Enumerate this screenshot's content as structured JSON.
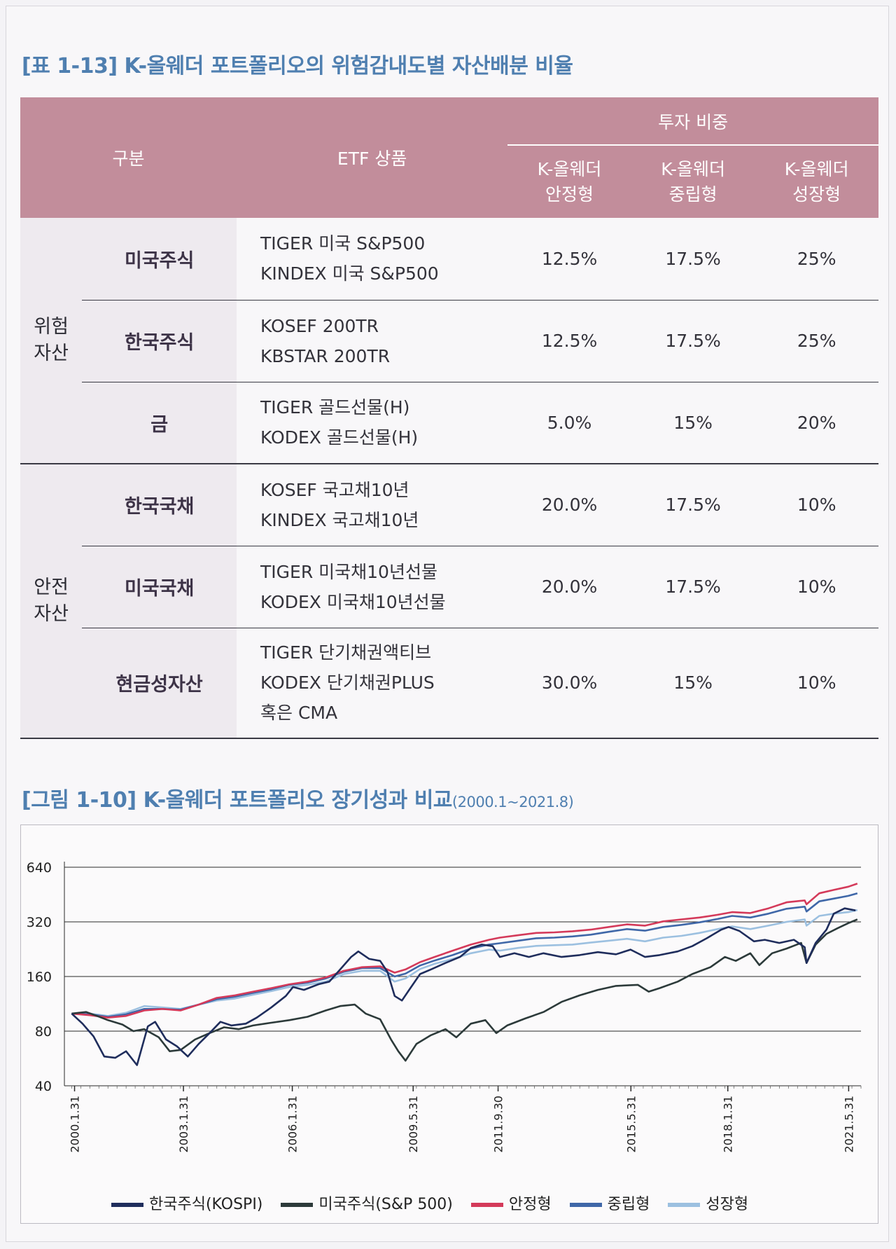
{
  "table": {
    "caption": "[표 1-13] K-올웨더 포트폴리오의 위험감내도별 자산배분 비율",
    "header": {
      "category": "구분",
      "etf": "ETF 상품",
      "weight_group": "투자 비중",
      "stable": [
        "K-올웨더",
        "안정형"
      ],
      "neutral": [
        "K-올웨더",
        "중립형"
      ],
      "growth": [
        "K-올웨더",
        "성장형"
      ]
    },
    "groups": [
      {
        "name": [
          "위험",
          "자산"
        ],
        "rows": [
          {
            "sub": "미국주식",
            "etf": [
              "TIGER 미국 S&P500",
              "KINDEX 미국 S&P500"
            ],
            "stable": "12.5%",
            "neutral": "17.5%",
            "growth": "25%"
          },
          {
            "sub": "한국주식",
            "etf": [
              "KOSEF 200TR",
              "KBSTAR 200TR"
            ],
            "stable": "12.5%",
            "neutral": "17.5%",
            "growth": "25%"
          },
          {
            "sub": "금",
            "etf": [
              "TIGER 골드선물(H)",
              "KODEX 골드선물(H)"
            ],
            "stable": "5.0%",
            "neutral": "15%",
            "growth": "20%"
          }
        ]
      },
      {
        "name": [
          "안전",
          "자산"
        ],
        "rows": [
          {
            "sub": "한국국채",
            "etf": [
              "KOSEF 국고채10년",
              "KINDEX 국고채10년"
            ],
            "stable": "20.0%",
            "neutral": "17.5%",
            "growth": "10%"
          },
          {
            "sub": "미국국채",
            "etf": [
              "TIGER 미국채10년선물",
              "KODEX 미국채10년선물"
            ],
            "stable": "20.0%",
            "neutral": "17.5%",
            "growth": "10%"
          },
          {
            "sub": "현금성자산",
            "etf": [
              "TIGER 단기채권액티브",
              "KODEX 단기채권PLUS",
              "혹은 CMA"
            ],
            "stable": "30.0%",
            "neutral": "15%",
            "growth": "10%"
          }
        ]
      }
    ]
  },
  "figure": {
    "caption_main": "[그림 1-10] K-올웨더 포트폴리오 장기성과 비교",
    "caption_range": "(2000.1~2021.8)"
  },
  "chart_data": {
    "type": "line",
    "y_scale": "log2",
    "ylim": [
      40,
      640
    ],
    "y_ticks": [
      40,
      80,
      160,
      320,
      640
    ],
    "x_ticks": [
      "2000.1.31",
      "2003.1.31",
      "2006.1.31",
      "2009.5.31",
      "2011.9.30",
      "2015.5.31",
      "2018.1.31",
      "2021.5.31"
    ],
    "x_tick_years": [
      2000.08,
      2003.08,
      2006.08,
      2009.41,
      2011.75,
      2015.41,
      2018.08,
      2021.41
    ],
    "xlim_years": [
      1999.8,
      2021.75
    ],
    "grid": "horizontal",
    "legend_position": "bottom",
    "series": [
      {
        "name": "한국주식(KOSPI)",
        "color": "#1f2d5c",
        "points": [
          [
            2000.0,
            100
          ],
          [
            2000.3,
            88
          ],
          [
            2000.6,
            75
          ],
          [
            2000.9,
            58
          ],
          [
            2001.2,
            57
          ],
          [
            2001.5,
            62
          ],
          [
            2001.8,
            52
          ],
          [
            2002.1,
            85
          ],
          [
            2002.3,
            90
          ],
          [
            2002.6,
            72
          ],
          [
            2002.9,
            66
          ],
          [
            2003.2,
            58
          ],
          [
            2003.5,
            68
          ],
          [
            2003.8,
            78
          ],
          [
            2004.1,
            90
          ],
          [
            2004.4,
            86
          ],
          [
            2004.8,
            88
          ],
          [
            2005.1,
            95
          ],
          [
            2005.5,
            108
          ],
          [
            2005.9,
            125
          ],
          [
            2006.1,
            140
          ],
          [
            2006.4,
            135
          ],
          [
            2006.8,
            145
          ],
          [
            2007.1,
            150
          ],
          [
            2007.4,
            175
          ],
          [
            2007.7,
            205
          ],
          [
            2007.9,
            220
          ],
          [
            2008.2,
            200
          ],
          [
            2008.5,
            195
          ],
          [
            2008.7,
            170
          ],
          [
            2008.9,
            125
          ],
          [
            2009.1,
            118
          ],
          [
            2009.3,
            135
          ],
          [
            2009.6,
            165
          ],
          [
            2009.9,
            175
          ],
          [
            2010.3,
            190
          ],
          [
            2010.7,
            205
          ],
          [
            2011.0,
            230
          ],
          [
            2011.3,
            240
          ],
          [
            2011.6,
            235
          ],
          [
            2011.8,
            205
          ],
          [
            2012.2,
            215
          ],
          [
            2012.6,
            205
          ],
          [
            2013.0,
            215
          ],
          [
            2013.5,
            205
          ],
          [
            2014.0,
            210
          ],
          [
            2014.5,
            218
          ],
          [
            2015.0,
            212
          ],
          [
            2015.4,
            225
          ],
          [
            2015.8,
            205
          ],
          [
            2016.2,
            210
          ],
          [
            2016.7,
            220
          ],
          [
            2017.1,
            235
          ],
          [
            2017.5,
            260
          ],
          [
            2017.9,
            290
          ],
          [
            2018.1,
            300
          ],
          [
            2018.4,
            285
          ],
          [
            2018.8,
            250
          ],
          [
            2019.1,
            255
          ],
          [
            2019.5,
            245
          ],
          [
            2019.9,
            255
          ],
          [
            2020.2,
            232
          ],
          [
            2020.25,
            190
          ],
          [
            2020.5,
            245
          ],
          [
            2020.8,
            290
          ],
          [
            2021.0,
            355
          ],
          [
            2021.3,
            380
          ],
          [
            2021.6,
            370
          ]
        ]
      },
      {
        "name": "미국주식(S&P 500)",
        "color": "#2c3a3a",
        "points": [
          [
            2000.0,
            100
          ],
          [
            2000.4,
            102
          ],
          [
            2000.7,
            97
          ],
          [
            2001.0,
            92
          ],
          [
            2001.4,
            87
          ],
          [
            2001.7,
            80
          ],
          [
            2002.0,
            82
          ],
          [
            2002.4,
            74
          ],
          [
            2002.7,
            62
          ],
          [
            2003.0,
            63
          ],
          [
            2003.4,
            72
          ],
          [
            2003.8,
            78
          ],
          [
            2004.2,
            84
          ],
          [
            2004.6,
            82
          ],
          [
            2005.0,
            86
          ],
          [
            2005.5,
            89
          ],
          [
            2006.0,
            92
          ],
          [
            2006.5,
            96
          ],
          [
            2007.0,
            104
          ],
          [
            2007.4,
            110
          ],
          [
            2007.8,
            112
          ],
          [
            2008.1,
            100
          ],
          [
            2008.5,
            93
          ],
          [
            2008.8,
            72
          ],
          [
            2009.0,
            62
          ],
          [
            2009.2,
            55
          ],
          [
            2009.5,
            68
          ],
          [
            2009.9,
            76
          ],
          [
            2010.3,
            82
          ],
          [
            2010.6,
            74
          ],
          [
            2011.0,
            88
          ],
          [
            2011.4,
            92
          ],
          [
            2011.7,
            78
          ],
          [
            2012.0,
            86
          ],
          [
            2012.5,
            94
          ],
          [
            2013.0,
            102
          ],
          [
            2013.5,
            116
          ],
          [
            2014.0,
            126
          ],
          [
            2014.5,
            135
          ],
          [
            2015.0,
            142
          ],
          [
            2015.6,
            144
          ],
          [
            2015.9,
            132
          ],
          [
            2016.2,
            138
          ],
          [
            2016.7,
            150
          ],
          [
            2017.1,
            165
          ],
          [
            2017.6,
            180
          ],
          [
            2018.0,
            205
          ],
          [
            2018.3,
            195
          ],
          [
            2018.7,
            215
          ],
          [
            2018.95,
            185
          ],
          [
            2019.3,
            215
          ],
          [
            2019.7,
            228
          ],
          [
            2020.1,
            245
          ],
          [
            2020.25,
            190
          ],
          [
            2020.5,
            240
          ],
          [
            2020.8,
            275
          ],
          [
            2021.1,
            295
          ],
          [
            2021.4,
            315
          ],
          [
            2021.65,
            330
          ]
        ]
      },
      {
        "name": "안정형",
        "color": "#d43a5a",
        "points": [
          [
            2000.0,
            100
          ],
          [
            2000.5,
            98
          ],
          [
            2001.0,
            95
          ],
          [
            2001.5,
            97
          ],
          [
            2002.0,
            104
          ],
          [
            2002.5,
            106
          ],
          [
            2003.0,
            104
          ],
          [
            2003.5,
            112
          ],
          [
            2004.0,
            122
          ],
          [
            2004.5,
            126
          ],
          [
            2005.0,
            132
          ],
          [
            2005.5,
            138
          ],
          [
            2006.0,
            145
          ],
          [
            2006.5,
            150
          ],
          [
            2007.0,
            158
          ],
          [
            2007.5,
            172
          ],
          [
            2008.0,
            180
          ],
          [
            2008.5,
            182
          ],
          [
            2008.9,
            168
          ],
          [
            2009.2,
            175
          ],
          [
            2009.6,
            192
          ],
          [
            2010.0,
            205
          ],
          [
            2010.5,
            222
          ],
          [
            2011.0,
            240
          ],
          [
            2011.5,
            255
          ],
          [
            2011.8,
            262
          ],
          [
            2012.3,
            270
          ],
          [
            2012.8,
            278
          ],
          [
            2013.3,
            280
          ],
          [
            2013.8,
            284
          ],
          [
            2014.3,
            290
          ],
          [
            2014.8,
            300
          ],
          [
            2015.3,
            310
          ],
          [
            2015.8,
            305
          ],
          [
            2016.3,
            322
          ],
          [
            2016.8,
            330
          ],
          [
            2017.3,
            338
          ],
          [
            2017.8,
            350
          ],
          [
            2018.2,
            362
          ],
          [
            2018.7,
            358
          ],
          [
            2019.2,
            380
          ],
          [
            2019.7,
            410
          ],
          [
            2020.2,
            420
          ],
          [
            2020.25,
            400
          ],
          [
            2020.6,
            460
          ],
          [
            2021.0,
            480
          ],
          [
            2021.4,
            500
          ],
          [
            2021.65,
            520
          ]
        ]
      },
      {
        "name": "중립형",
        "color": "#3f67a8",
        "points": [
          [
            2000.0,
            100
          ],
          [
            2000.5,
            99
          ],
          [
            2001.0,
            96
          ],
          [
            2001.5,
            99
          ],
          [
            2002.0,
            106
          ],
          [
            2002.5,
            106
          ],
          [
            2003.0,
            105
          ],
          [
            2003.5,
            112
          ],
          [
            2004.0,
            120
          ],
          [
            2004.5,
            124
          ],
          [
            2005.0,
            130
          ],
          [
            2005.5,
            136
          ],
          [
            2006.0,
            144
          ],
          [
            2006.5,
            148
          ],
          [
            2007.0,
            156
          ],
          [
            2007.5,
            170
          ],
          [
            2008.0,
            178
          ],
          [
            2008.5,
            178
          ],
          [
            2008.9,
            160
          ],
          [
            2009.2,
            166
          ],
          [
            2009.6,
            184
          ],
          [
            2010.0,
            196
          ],
          [
            2010.5,
            210
          ],
          [
            2011.0,
            228
          ],
          [
            2011.5,
            240
          ],
          [
            2011.8,
            244
          ],
          [
            2012.3,
            252
          ],
          [
            2012.8,
            260
          ],
          [
            2013.3,
            262
          ],
          [
            2013.8,
            266
          ],
          [
            2014.3,
            272
          ],
          [
            2014.8,
            282
          ],
          [
            2015.3,
            292
          ],
          [
            2015.8,
            286
          ],
          [
            2016.3,
            300
          ],
          [
            2016.8,
            308
          ],
          [
            2017.3,
            318
          ],
          [
            2017.8,
            332
          ],
          [
            2018.2,
            345
          ],
          [
            2018.7,
            338
          ],
          [
            2019.2,
            355
          ],
          [
            2019.7,
            378
          ],
          [
            2020.2,
            388
          ],
          [
            2020.25,
            365
          ],
          [
            2020.6,
            415
          ],
          [
            2021.0,
            430
          ],
          [
            2021.4,
            445
          ],
          [
            2021.65,
            460
          ]
        ]
      },
      {
        "name": "성장형",
        "color": "#9cc0e0",
        "points": [
          [
            2000.0,
            100
          ],
          [
            2000.5,
            100
          ],
          [
            2001.0,
            97
          ],
          [
            2001.5,
            101
          ],
          [
            2002.0,
            110
          ],
          [
            2002.5,
            108
          ],
          [
            2003.0,
            106
          ],
          [
            2003.5,
            112
          ],
          [
            2004.0,
            118
          ],
          [
            2004.5,
            121
          ],
          [
            2005.0,
            127
          ],
          [
            2005.5,
            133
          ],
          [
            2006.0,
            140
          ],
          [
            2006.5,
            144
          ],
          [
            2007.0,
            150
          ],
          [
            2007.5,
            165
          ],
          [
            2008.0,
            172
          ],
          [
            2008.5,
            172
          ],
          [
            2008.9,
            150
          ],
          [
            2009.2,
            156
          ],
          [
            2009.6,
            176
          ],
          [
            2010.0,
            188
          ],
          [
            2010.5,
            200
          ],
          [
            2011.0,
            215
          ],
          [
            2011.5,
            225
          ],
          [
            2011.8,
            222
          ],
          [
            2012.3,
            230
          ],
          [
            2012.8,
            236
          ],
          [
            2013.3,
            238
          ],
          [
            2013.8,
            240
          ],
          [
            2014.3,
            246
          ],
          [
            2014.8,
            252
          ],
          [
            2015.3,
            258
          ],
          [
            2015.8,
            250
          ],
          [
            2016.3,
            262
          ],
          [
            2016.8,
            268
          ],
          [
            2017.3,
            278
          ],
          [
            2017.8,
            292
          ],
          [
            2018.2,
            302
          ],
          [
            2018.7,
            292
          ],
          [
            2019.2,
            305
          ],
          [
            2019.7,
            320
          ],
          [
            2020.2,
            330
          ],
          [
            2020.25,
            305
          ],
          [
            2020.6,
            345
          ],
          [
            2021.0,
            355
          ],
          [
            2021.4,
            362
          ],
          [
            2021.65,
            372
          ]
        ]
      }
    ]
  }
}
